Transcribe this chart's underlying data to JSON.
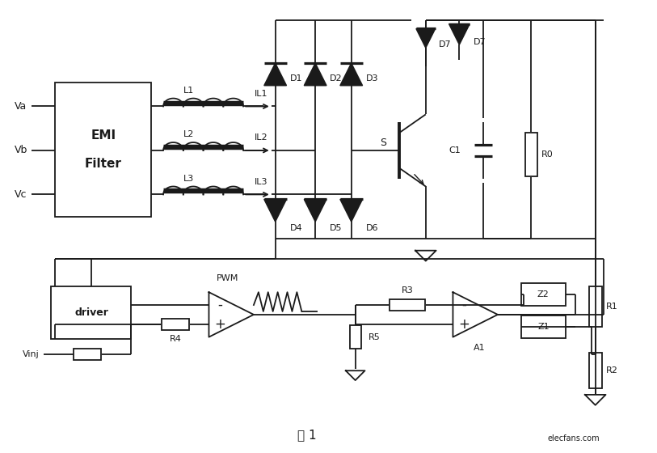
{
  "bg": "#ffffff",
  "lc": "#1a1a1a",
  "lw": 1.3,
  "fig_label": "图 1",
  "watermark": "elecfans.com",
  "Va_label": "Va",
  "Vb_label": "Vb",
  "Vc_label": "Vc",
  "EMI_line1": "EMI",
  "EMI_line2": "Filter",
  "L1": "L1",
  "L2": "L2",
  "L3": "L3",
  "IL1": "IL1",
  "IL2": "IL2",
  "IL3": "IL3",
  "D1": "D1",
  "D2": "D2",
  "D3": "D3",
  "D4": "D4",
  "D5": "D5",
  "D6": "D6",
  "D7": "D7",
  "S": "S",
  "C1": "C1",
  "R0": "R0",
  "R1": "R1",
  "R2": "R2",
  "R3": "R3",
  "R4": "R4",
  "R5": "R5",
  "Z1": "Z1",
  "Z2": "Z2",
  "A1": "A1",
  "PWM": "PWM",
  "driver": "driver",
  "Vinj": "Vinj"
}
